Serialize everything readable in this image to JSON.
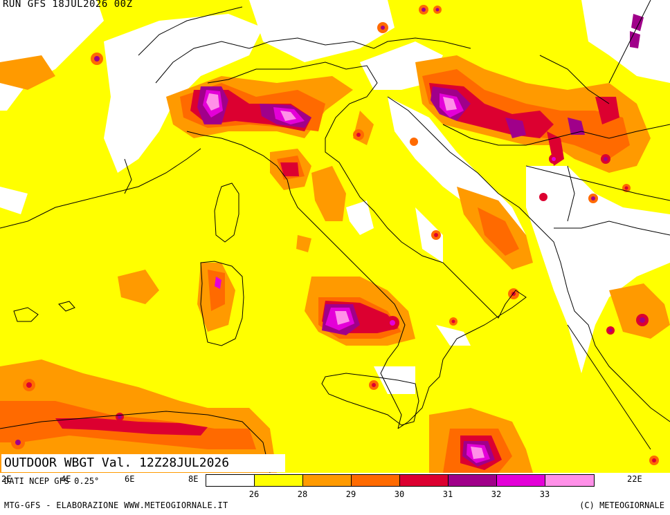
{
  "header": {
    "run_label": "RUN GFS 18JUL2026 00Z"
  },
  "title": {
    "text": "OUTDOOR WBGT Val. 12Z28JUL2026"
  },
  "source": {
    "text": "DATI NCEP GFS 0.25°"
  },
  "longitude_labels": [
    "4E",
    "6E",
    "8E",
    "22E"
  ],
  "legend": {
    "colors": [
      "#ffffff",
      "#ffff00",
      "#ff9a00",
      "#ff6a00",
      "#dc0030",
      "#a0008a",
      "#e400d8",
      "#ff90e8"
    ],
    "ticks": [
      "26",
      "28",
      "29",
      "30",
      "31",
      "32",
      "33"
    ]
  },
  "footer": {
    "left": "MTG-GFS - ELABORAZIONE WWW.METEOGIORNALE.IT",
    "right": "(C) METEOGIORNALE"
  }
}
